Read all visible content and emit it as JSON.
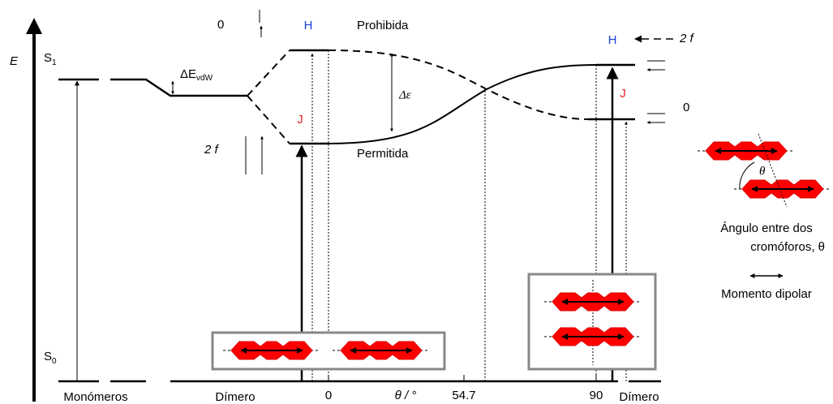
{
  "axis": {
    "energy": "E",
    "s1": {
      "base": "S",
      "sub": "1"
    },
    "s0": {
      "base": "S",
      "sub": "0"
    },
    "x_label": "θ / °",
    "ticks": [
      "0",
      "54.7",
      "90"
    ],
    "groups": [
      "Monómeros",
      "Dímero",
      "Dímero"
    ]
  },
  "levels": {
    "vdw": {
      "base": "ΔE",
      "sub": "vdW"
    },
    "delta_eps": "Δε",
    "h_left": "H",
    "j_left": "J",
    "h_right": "H",
    "j_right": "J",
    "prohibida": "Prohibida",
    "permitida": "Permitida"
  },
  "oscillator": {
    "left_top": "0",
    "left_bottom": "2 f",
    "right_top": "2 f",
    "right_bottom": "0"
  },
  "legend": {
    "theta": "θ",
    "angle": [
      "Ángulo entre dos",
      "cromóforos, θ"
    ],
    "dipole": "Momento dipolar"
  }
}
